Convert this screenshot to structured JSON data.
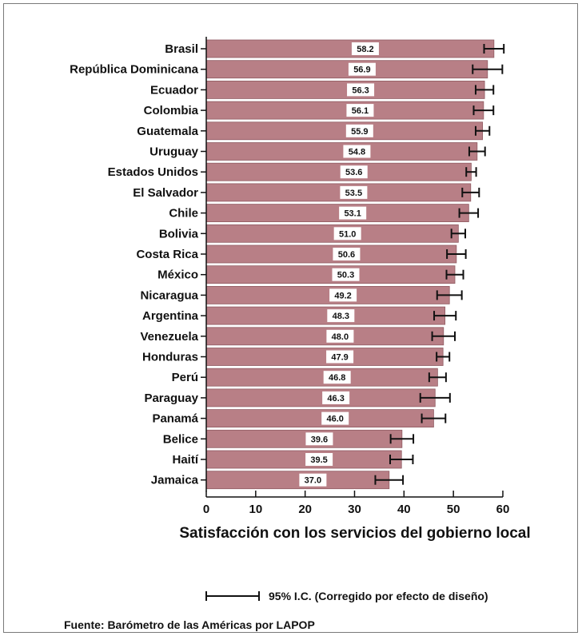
{
  "colors": {
    "bar": "#b87f86",
    "bar_edge": "#8f5a61",
    "label_bg": "#ffffff",
    "text": "#111111"
  },
  "chart_data": {
    "type": "bar",
    "orientation": "horizontal",
    "xlabel": "Satisfacción con los servicios del gobierno local",
    "xlim": [
      0,
      60
    ],
    "xticks": [
      "0",
      "10",
      "20",
      "30",
      "40",
      "50",
      "60"
    ],
    "legend_label": "95% I.C. (Corregido por efecto de diseño)",
    "source": "Fuente: Barómetro de las Américas por LAPOP",
    "categories": [
      "Brasil",
      "República Dominicana",
      "Ecuador",
      "Colombia",
      "Guatemala",
      "Uruguay",
      "Estados Unidos",
      "El Salvador",
      "Chile",
      "Bolivia",
      "Costa Rica",
      "México",
      "Nicaragua",
      "Argentina",
      "Venezuela",
      "Honduras",
      "Perú",
      "Paraguay",
      "Panamá",
      "Belice",
      "Haití",
      "Jamaica"
    ],
    "values": [
      58.2,
      56.9,
      56.3,
      56.1,
      55.9,
      54.8,
      53.6,
      53.5,
      53.1,
      51.0,
      50.6,
      50.3,
      49.2,
      48.3,
      48.0,
      47.9,
      46.8,
      46.3,
      46.0,
      39.6,
      39.5,
      37.0
    ],
    "value_labels": [
      "58.2",
      "56.9",
      "56.3",
      "56.1",
      "55.9",
      "54.8",
      "53.6",
      "53.5",
      "53.1",
      "51.0",
      "50.6",
      "50.3",
      "49.2",
      "48.3",
      "48.0",
      "47.9",
      "46.8",
      "46.3",
      "46.0",
      "39.6",
      "39.5",
      "37.0"
    ],
    "ci_low": [
      56.2,
      53.9,
      54.5,
      54.1,
      54.5,
      53.2,
      52.6,
      51.8,
      51.2,
      49.6,
      48.7,
      48.6,
      46.7,
      46.1,
      45.7,
      46.6,
      45.1,
      43.3,
      43.6,
      37.3,
      37.2,
      34.2
    ],
    "ci_high": [
      60.2,
      59.9,
      58.1,
      58.1,
      57.3,
      56.4,
      54.6,
      55.2,
      55.0,
      52.4,
      52.5,
      52.0,
      51.7,
      50.5,
      50.3,
      49.2,
      48.5,
      49.3,
      48.4,
      41.9,
      41.8,
      39.8
    ]
  }
}
